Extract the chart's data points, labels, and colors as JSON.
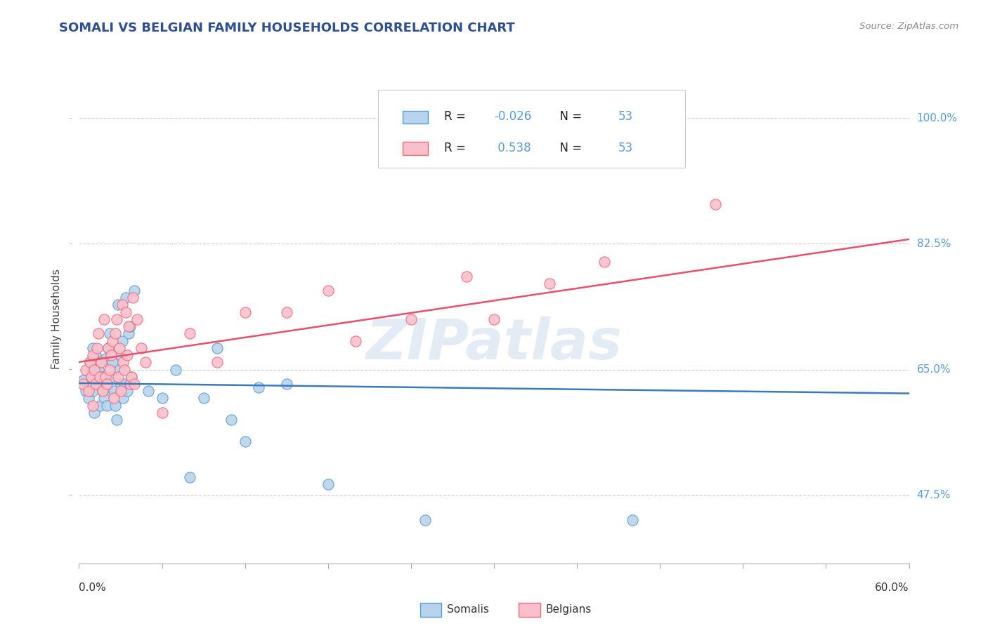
{
  "title": "SOMALI VS BELGIAN FAMILY HOUSEHOLDS CORRELATION CHART",
  "source_text": "Source: ZipAtlas.com",
  "ylabel": "Family Households",
  "ylabel_tick_values": [
    0.475,
    0.65,
    0.825,
    1.0
  ],
  "ylabel_tick_labels": [
    "47.5%",
    "65.0%",
    "82.5%",
    "100.0%"
  ],
  "x_min": 0.0,
  "x_max": 0.6,
  "y_min": 0.38,
  "y_max": 1.06,
  "somali_fill_color": "#b8d4ec",
  "somali_edge_color": "#5b9bd5",
  "belgian_fill_color": "#f9c0cc",
  "belgian_edge_color": "#f4687a",
  "somali_line_color": "#3a7abf",
  "belgian_line_color": "#e8506a",
  "R_somali": -0.026,
  "N_somali": 53,
  "R_belgian": 0.538,
  "N_belgian": 53,
  "legend_label_somali": "Somalis",
  "legend_label_belgian": "Belgians",
  "watermark": "ZIPatlas",
  "title_color": "#2e5090",
  "source_color": "#888888",
  "tick_label_color": "#5b9bd5",
  "somali_x": [
    0.003,
    0.005,
    0.007,
    0.008,
    0.009,
    0.01,
    0.01,
    0.01,
    0.011,
    0.012,
    0.013,
    0.014,
    0.015,
    0.015,
    0.016,
    0.017,
    0.018,
    0.019,
    0.02,
    0.02,
    0.021,
    0.022,
    0.023,
    0.024,
    0.025,
    0.026,
    0.027,
    0.028,
    0.029,
    0.03,
    0.03,
    0.031,
    0.032,
    0.033,
    0.034,
    0.035,
    0.036,
    0.037,
    0.038,
    0.04,
    0.05,
    0.06,
    0.07,
    0.08,
    0.09,
    0.1,
    0.11,
    0.12,
    0.13,
    0.15,
    0.18,
    0.25,
    0.4
  ],
  "somali_y": [
    0.635,
    0.62,
    0.61,
    0.66,
    0.64,
    0.65,
    0.62,
    0.68,
    0.59,
    0.67,
    0.63,
    0.65,
    0.66,
    0.6,
    0.64,
    0.62,
    0.61,
    0.665,
    0.625,
    0.6,
    0.68,
    0.7,
    0.64,
    0.66,
    0.62,
    0.6,
    0.58,
    0.74,
    0.65,
    0.63,
    0.67,
    0.69,
    0.61,
    0.63,
    0.75,
    0.62,
    0.7,
    0.71,
    0.64,
    0.76,
    0.62,
    0.61,
    0.65,
    0.5,
    0.61,
    0.68,
    0.58,
    0.55,
    0.625,
    0.63,
    0.49,
    0.44,
    0.44
  ],
  "belgian_x": [
    0.003,
    0.005,
    0.007,
    0.008,
    0.009,
    0.01,
    0.01,
    0.011,
    0.012,
    0.013,
    0.014,
    0.015,
    0.016,
    0.017,
    0.018,
    0.019,
    0.02,
    0.021,
    0.022,
    0.023,
    0.024,
    0.025,
    0.026,
    0.027,
    0.028,
    0.029,
    0.03,
    0.031,
    0.032,
    0.033,
    0.034,
    0.035,
    0.036,
    0.037,
    0.038,
    0.039,
    0.04,
    0.042,
    0.045,
    0.048,
    0.06,
    0.08,
    0.1,
    0.12,
    0.15,
    0.18,
    0.2,
    0.24,
    0.28,
    0.3,
    0.34,
    0.38,
    0.46
  ],
  "belgian_y": [
    0.63,
    0.65,
    0.62,
    0.66,
    0.64,
    0.6,
    0.67,
    0.65,
    0.63,
    0.68,
    0.7,
    0.64,
    0.66,
    0.62,
    0.72,
    0.64,
    0.63,
    0.68,
    0.65,
    0.67,
    0.69,
    0.61,
    0.7,
    0.72,
    0.64,
    0.68,
    0.62,
    0.74,
    0.66,
    0.65,
    0.73,
    0.67,
    0.71,
    0.63,
    0.64,
    0.75,
    0.63,
    0.72,
    0.68,
    0.66,
    0.59,
    0.7,
    0.66,
    0.73,
    0.73,
    0.76,
    0.69,
    0.72,
    0.78,
    0.72,
    0.77,
    0.8,
    0.88
  ]
}
